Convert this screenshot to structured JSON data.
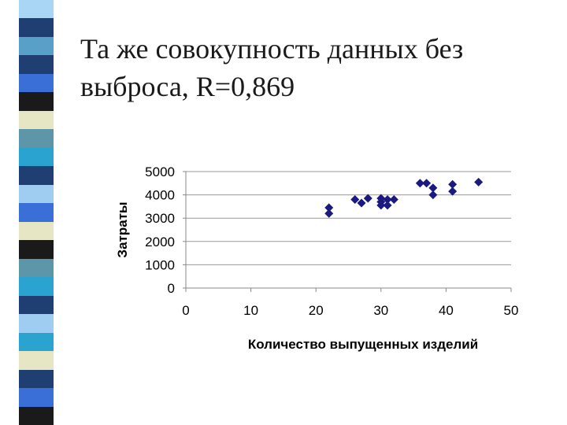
{
  "slide": {
    "title_line1": "Та же совокупность данных без",
    "title_line2": "выброса, R=0,869"
  },
  "decor": {
    "stripe_colors": [
      "#a9d6f5",
      "#1f3f73",
      "#58a0c8",
      "#1f3f73",
      "#3a6fd8",
      "#1a1a1a",
      "#e6e6c4",
      "#5d96a8",
      "#2aa3d1",
      "#1f3f73",
      "#9fcdf2",
      "#3a6fd8",
      "#e6e6c4",
      "#1a1a1a",
      "#5d96a8",
      "#2aa3d1",
      "#1f3f73",
      "#9fcdf2",
      "#2aa3d1",
      "#e6e6c4",
      "#1f3f73",
      "#3a6fd8",
      "#1a1a1a"
    ]
  },
  "chart_data": {
    "type": "scatter",
    "title": "",
    "xlabel": "Количество выпущенных изделий",
    "ylabel": "Затраты",
    "xlim": [
      0,
      50
    ],
    "ylim": [
      0,
      5000
    ],
    "x_ticks": [
      0,
      10,
      20,
      30,
      40,
      50
    ],
    "y_ticks": [
      0,
      1000,
      2000,
      3000,
      4000,
      5000
    ],
    "grid": "horizontal",
    "legend": "none",
    "marker": "diamond",
    "marker_color": "#1a1a80",
    "points": [
      {
        "x": 22,
        "y": 3450
      },
      {
        "x": 22,
        "y": 3200
      },
      {
        "x": 26,
        "y": 3800
      },
      {
        "x": 27,
        "y": 3650
      },
      {
        "x": 28,
        "y": 3850
      },
      {
        "x": 30,
        "y": 3850
      },
      {
        "x": 30,
        "y": 3700
      },
      {
        "x": 30,
        "y": 3550
      },
      {
        "x": 31,
        "y": 3800
      },
      {
        "x": 31,
        "y": 3550
      },
      {
        "x": 32,
        "y": 3800
      },
      {
        "x": 36,
        "y": 4500
      },
      {
        "x": 37,
        "y": 4500
      },
      {
        "x": 38,
        "y": 4300
      },
      {
        "x": 38,
        "y": 4000
      },
      {
        "x": 41,
        "y": 4450
      },
      {
        "x": 41,
        "y": 4150
      },
      {
        "x": 45,
        "y": 4550
      }
    ]
  }
}
